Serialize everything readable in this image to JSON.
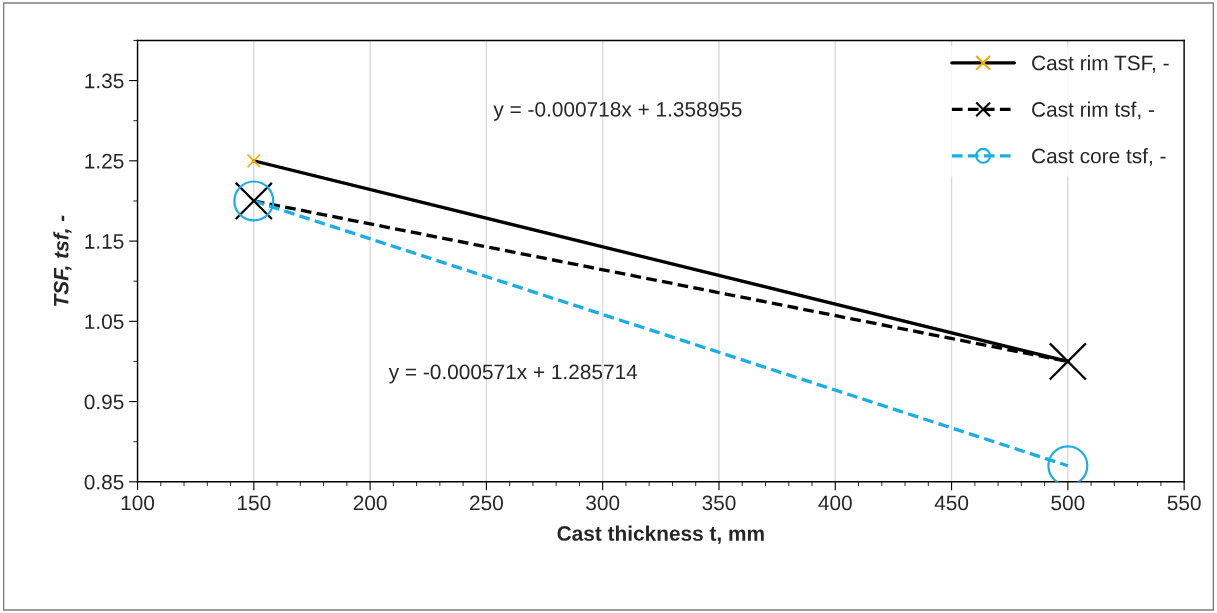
{
  "chart_data": {
    "type": "line",
    "xlabel": "Cast thickness t, mm",
    "ylabel": "TSF, tsf, -",
    "xlim": [
      100,
      550
    ],
    "xticks": [
      100,
      150,
      200,
      250,
      300,
      350,
      400,
      450,
      500,
      550
    ],
    "ylim": [
      0.85,
      1.4
    ],
    "yticks": [
      0.85,
      0.95,
      1.05,
      1.15,
      1.25,
      1.35
    ],
    "grid": "x",
    "legend": "top right",
    "x": [
      150,
      500
    ],
    "series": [
      {
        "name": "Cast rim TSF, -",
        "color": "#000000",
        "colors": [
          "#f0b000",
          "#f0b000"
        ],
        "values": [
          1.25,
          1.0
        ],
        "marker": "cross",
        "line_style": "solid"
      },
      {
        "name": "Cast rim tsf, -",
        "color": "#000000",
        "values": [
          1.2,
          1.0
        ],
        "marker": "cross",
        "line_style": "dashed"
      },
      {
        "name": "Cast core tsf, -",
        "color": "#1aaee5",
        "values": [
          1.2,
          0.87
        ],
        "marker": "circle",
        "line_style": "dashed"
      }
    ],
    "annotations": [
      "y = -0.000718x + 1.358955",
      "y = -0.000571x + 1.285714"
    ]
  }
}
